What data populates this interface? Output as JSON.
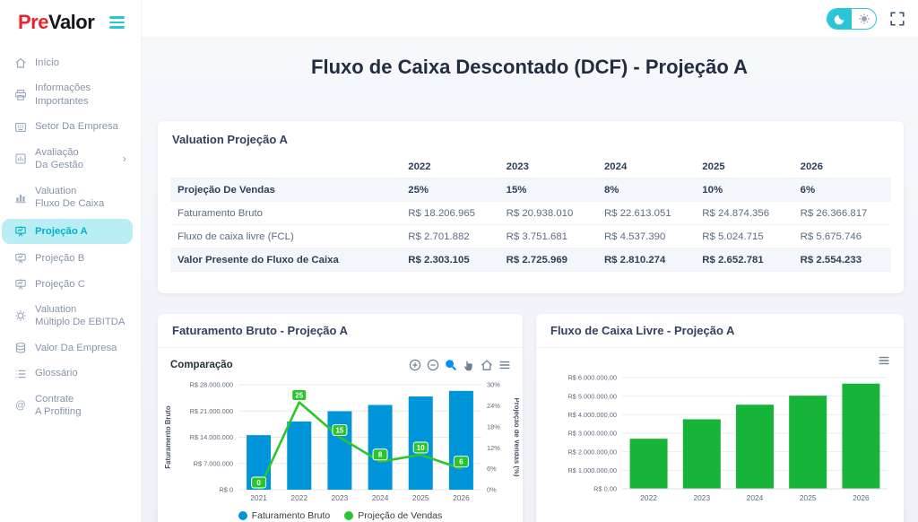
{
  "brand": {
    "pre": "Pre",
    "valor": "Valor"
  },
  "colors": {
    "accent_cyan": "#29c5d6",
    "active_item_bg": "#b9eef5",
    "logo_red": "#e8242b",
    "bar_blue": "#0095d9",
    "line_green": "#2bc52b",
    "fcl_green": "#17b43a",
    "selected_tool_blue": "#008ffb"
  },
  "topbar": {
    "icons": [
      "dark-mode-icon",
      "light-mode-icon",
      "fullscreen-icon"
    ]
  },
  "page_title": "Fluxo de Caixa Descontado (DCF) - Projeção A",
  "sidebar": {
    "menu_icon": "hamburger-icon",
    "items": [
      {
        "id": "inicio",
        "label": "Início",
        "icon": "home-icon"
      },
      {
        "id": "informacoes-importantes",
        "label": "Informações\nImportantes",
        "icon": "printer-icon"
      },
      {
        "id": "setor-da-empresa",
        "label": "Setor Da Empresa",
        "icon": "grid-icon"
      },
      {
        "id": "avaliacao-da-gestao",
        "label": "Avaliação\nDa Gestão",
        "icon": "board-icon",
        "chevron": "›"
      },
      {
        "id": "valuation-fluxo-de-caixa",
        "label": "Valuation\nFluxo De Caixa",
        "icon": "bar-chart-icon"
      },
      {
        "id": "projecao-a",
        "label": "Projeção A",
        "icon": "presentation-icon",
        "active": true
      },
      {
        "id": "projecao-b",
        "label": "Projeção B",
        "icon": "presentation-icon"
      },
      {
        "id": "projecao-c",
        "label": "Projeção C",
        "icon": "presentation-icon"
      },
      {
        "id": "valuation-multiplo-de-ebitda",
        "label": "Valuation\nMúltiplo De EBITDA",
        "icon": "gear-icon"
      },
      {
        "id": "valor-da-empresa",
        "label": "Valor Da Empresa",
        "icon": "coins-icon"
      },
      {
        "id": "glossario",
        "label": "Glossário",
        "icon": "list-icon"
      },
      {
        "id": "contrate-a-profiting",
        "label": "Contrate\nA Profiting",
        "icon": "at-icon"
      }
    ]
  },
  "valuation_table": {
    "card_title": "Valuation Projeção A",
    "years": [
      "2022",
      "2023",
      "2024",
      "2025",
      "2026"
    ],
    "rows": [
      {
        "label": "Projeção De Vendas",
        "values": [
          "25%",
          "15%",
          "8%",
          "10%",
          "6%"
        ],
        "emphasis": true
      },
      {
        "label": "Faturamento Bruto",
        "values": [
          "R$ 18.206.965",
          "R$ 20.938.010",
          "R$ 22.613.051",
          "R$ 24.874.356",
          "R$ 26.366.817"
        ],
        "emphasis": false
      },
      {
        "label": "Fluxo de caixa livre (FCL)",
        "values": [
          "R$ 2.701.882",
          "R$ 3.751.681",
          "R$ 4.537.390",
          "R$ 5.024.715",
          "R$ 5.675.746"
        ],
        "emphasis": false
      },
      {
        "label": "Valor Presente do Fluxo de Caixa",
        "values": [
          "R$ 2.303.105",
          "R$ 2.725.969",
          "R$ 2.810.274",
          "R$ 2.652.781",
          "R$ 2.554.233"
        ],
        "emphasis": true
      }
    ]
  },
  "chart_data": [
    {
      "id": "faturamento-comparacao",
      "type": "bar+line",
      "card_title": "Faturamento Bruto - Projeção A",
      "title": "Comparação",
      "categories": [
        "2021",
        "2022",
        "2023",
        "2024",
        "2025",
        "2026"
      ],
      "series": [
        {
          "name": "Faturamento Bruto",
          "type": "bar",
          "axis": "left",
          "color": "#0095d9",
          "values": [
            14565572,
            18206965,
            20938010,
            22613051,
            24874356,
            26366817
          ]
        },
        {
          "name": "Projeção de Vendas",
          "type": "line",
          "axis": "right",
          "color": "#2bc52b",
          "values": [
            0,
            25,
            15,
            8,
            10,
            6
          ],
          "data_labels": [
            "0",
            "25",
            "15",
            "8",
            "10",
            "6"
          ]
        }
      ],
      "left_axis": {
        "label": "Faturamento Bruto",
        "max": 28000000,
        "ticks": [
          {
            "v": 0,
            "t": "R$ 0"
          },
          {
            "v": 7000000,
            "t": "R$ 7.000.000"
          },
          {
            "v": 14000000,
            "t": "R$ 14.000.000"
          },
          {
            "v": 21000000,
            "t": "R$ 21.000.000"
          },
          {
            "v": 28000000,
            "t": "R$ 28.000.000"
          }
        ]
      },
      "right_axis": {
        "label": "Projeção de Vendas (%)",
        "max": 30,
        "ticks": [
          {
            "v": 0,
            "t": "0%"
          },
          {
            "v": 6,
            "t": "6%"
          },
          {
            "v": 12,
            "t": "12%"
          },
          {
            "v": 18,
            "t": "18%"
          },
          {
            "v": 24,
            "t": "24%"
          },
          {
            "v": 30,
            "t": "30%"
          }
        ]
      },
      "legend": [
        "Faturamento Bruto",
        "Projeção de Vendas"
      ],
      "grid": true,
      "toolbar": [
        "zoom-in-icon",
        "zoom-out-icon",
        "selection-zoom-icon",
        "pan-icon",
        "home-icon",
        "menu-icon"
      ]
    },
    {
      "id": "fluxo-caixa-livre",
      "type": "bar",
      "card_title": "Fluxo de Caixa Livre - Projeção A",
      "categories": [
        "2022",
        "2023",
        "2024",
        "2025",
        "2026"
      ],
      "values": [
        2701882,
        3751681,
        4537390,
        5024715,
        5675746
      ],
      "color": "#17b43a",
      "y_axis": {
        "max": 6000000,
        "ticks": [
          {
            "v": 0,
            "t": "R$ 0,00"
          },
          {
            "v": 1000000,
            "t": "R$ 1.000.000,00"
          },
          {
            "v": 2000000,
            "t": "R$ 2.000.000,00"
          },
          {
            "v": 3000000,
            "t": "R$ 3.000.000,00"
          },
          {
            "v": 4000000,
            "t": "R$ 4.000.000,00"
          },
          {
            "v": 5000000,
            "t": "R$ 5.000.000,00"
          },
          {
            "v": 6000000,
            "t": "R$ 6.000.000,00"
          }
        ]
      },
      "grid": true,
      "toolbar": [
        "menu-icon"
      ]
    }
  ]
}
